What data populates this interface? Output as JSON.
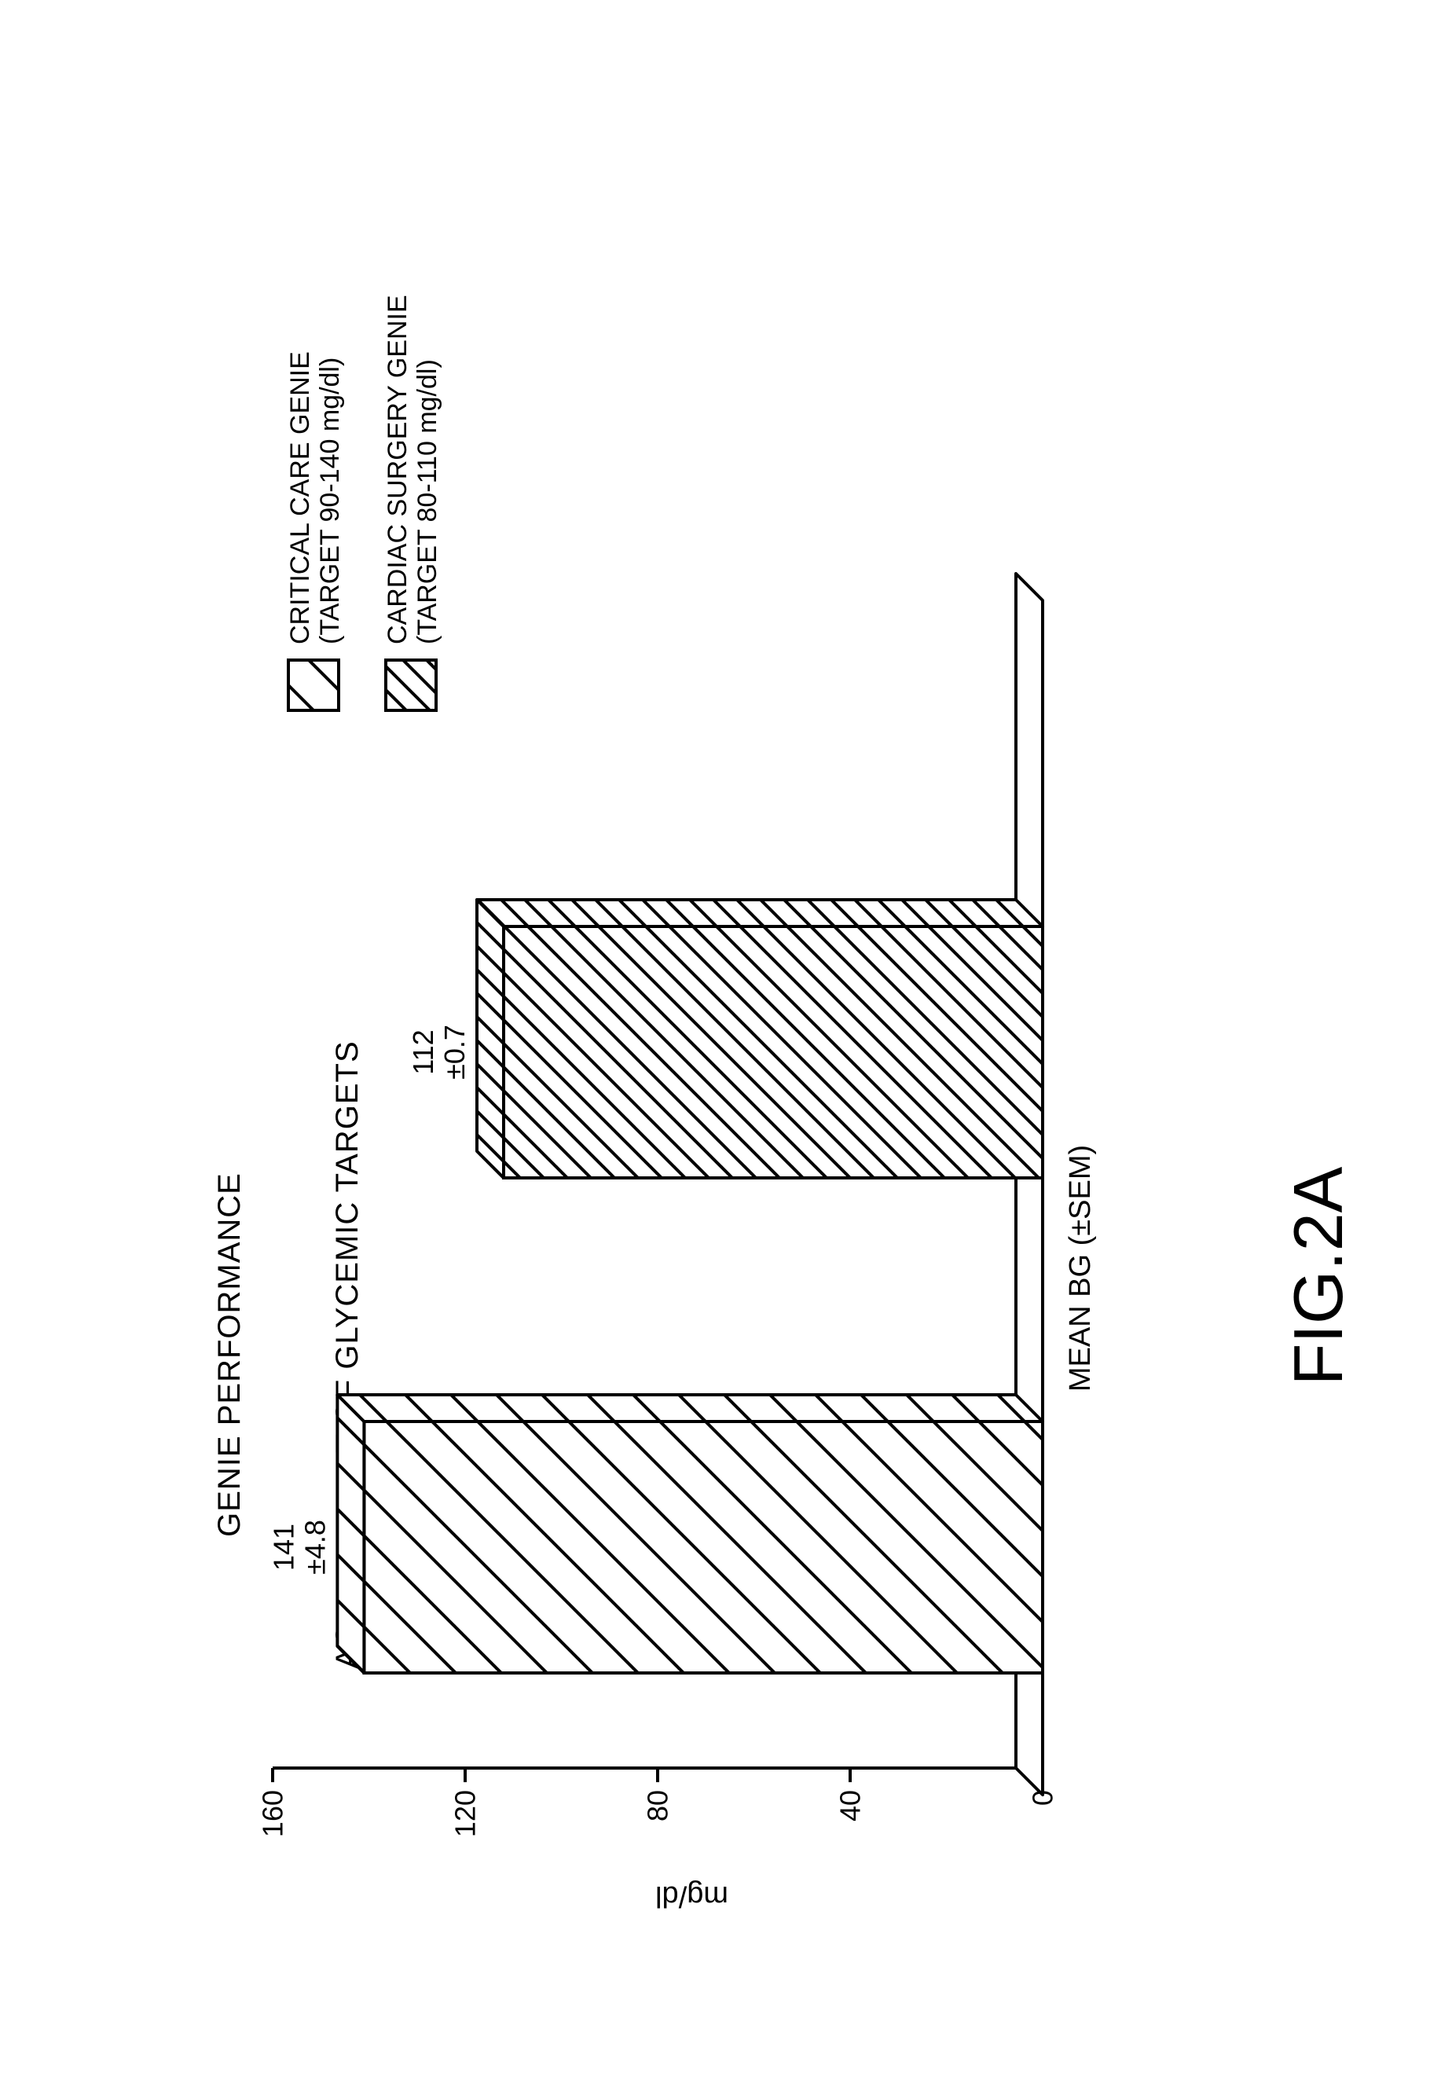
{
  "figure_label": "FIG.2A",
  "chart": {
    "type": "bar",
    "title_line1": "GENIE PERFORMANCE",
    "title_line2": "ACHIEVEMENT OF GLYCEMIC TARGETS",
    "title_fontsize": 40,
    "x_axis_label": "MEAN BG (±SEM)",
    "y_axis_label": "mg/dl",
    "axis_label_fontsize": 38,
    "tick_fontsize": 36,
    "ylim": [
      0,
      160
    ],
    "ytick_step": 40,
    "yticks": [
      0,
      40,
      80,
      120,
      160
    ],
    "background_color": "#ffffff",
    "stroke_color": "#000000",
    "stroke_width": 4,
    "bar_depth": 34,
    "bars": [
      {
        "name": "critical-care",
        "value": 141,
        "sem": 4.8,
        "value_label": "141",
        "sem_label": "±4.8",
        "pattern": "hatch-sparse"
      },
      {
        "name": "cardiac-surgery",
        "value": 112,
        "sem": 0.7,
        "value_label": "112",
        "sem_label": "±0.7",
        "pattern": "hatch-dense"
      }
    ],
    "legend": {
      "fontsize": 34,
      "items": [
        {
          "pattern": "hatch-sparse",
          "line1": "CRITICAL CARE GENIE",
          "line2": "(TARGET 90-140 mg/dl)"
        },
        {
          "pattern": "hatch-dense",
          "line1": "CARDIAC SURGERY GENIE",
          "line2": "(TARGET 80-110 mg/dl)"
        }
      ]
    }
  },
  "figure_label_fontsize": 88
}
